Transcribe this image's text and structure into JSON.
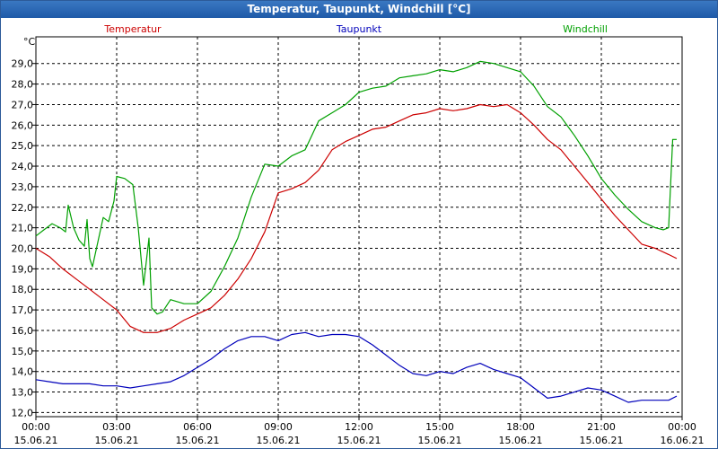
{
  "window": {
    "title": "Temperatur, Taupunkt, Windchill [°C]"
  },
  "chart_data": {
    "type": "line",
    "title": "Temperatur, Taupunkt, Windchill [°C]",
    "ylabel": "°C",
    "ylim": [
      11.8,
      30.3
    ],
    "xlim": [
      0,
      24
    ],
    "grid": true,
    "yticks": [
      "12,0",
      "13,0",
      "14,0",
      "15,0",
      "16,0",
      "17,0",
      "18,0",
      "19,0",
      "20,0",
      "21,0",
      "22,0",
      "23,0",
      "24,0",
      "25,0",
      "26,0",
      "27,0",
      "28,0",
      "29,0"
    ],
    "xticks": [
      {
        "time": "00:00",
        "date": "15.06.21"
      },
      {
        "time": "03:00",
        "date": "15.06.21"
      },
      {
        "time": "06:00",
        "date": "15.06.21"
      },
      {
        "time": "09:00",
        "date": "15.06.21"
      },
      {
        "time": "12:00",
        "date": "15.06.21"
      },
      {
        "time": "15:00",
        "date": "15.06.21"
      },
      {
        "time": "18:00",
        "date": "15.06.21"
      },
      {
        "time": "21:00",
        "date": "15.06.21"
      },
      {
        "time": "00:00",
        "date": "16.06.21"
      }
    ],
    "series": [
      {
        "name": "Temperatur",
        "color": "#cc0000",
        "x": [
          0,
          0.5,
          1,
          1.5,
          2,
          2.5,
          3,
          3.5,
          4,
          4.5,
          5,
          5.5,
          6,
          6.5,
          7,
          7.5,
          8,
          8.5,
          9,
          9.5,
          10,
          10.5,
          11,
          11.5,
          12,
          12.5,
          13,
          13.5,
          14,
          14.5,
          15,
          15.5,
          16,
          16.5,
          17,
          17.5,
          18,
          18.5,
          19,
          19.5,
          20,
          20.5,
          21,
          21.5,
          22,
          22.5,
          23,
          23.5,
          23.8
        ],
        "y": [
          20.0,
          19.6,
          19.0,
          18.5,
          18.0,
          17.5,
          17.0,
          16.2,
          15.9,
          15.9,
          16.1,
          16.5,
          16.8,
          17.1,
          17.7,
          18.5,
          19.5,
          20.8,
          22.7,
          22.9,
          23.2,
          23.8,
          24.8,
          25.2,
          25.5,
          25.8,
          25.9,
          26.2,
          26.5,
          26.6,
          26.8,
          26.7,
          26.8,
          27.0,
          26.9,
          27.0,
          26.6,
          26.0,
          25.3,
          24.8,
          24.0,
          23.2,
          22.4,
          21.6,
          20.9,
          20.2,
          20.0,
          19.7,
          19.5
        ]
      },
      {
        "name": "Taupunkt",
        "color": "#0000bb",
        "x": [
          0,
          0.5,
          1,
          1.5,
          2,
          2.5,
          3,
          3.5,
          4,
          4.5,
          5,
          5.5,
          6,
          6.5,
          7,
          7.5,
          8,
          8.5,
          9,
          9.5,
          10,
          10.5,
          11,
          11.5,
          12,
          12.5,
          13,
          13.5,
          14,
          14.5,
          15,
          15.5,
          16,
          16.5,
          17,
          17.5,
          18,
          18.5,
          19,
          19.5,
          20,
          20.5,
          21,
          21.5,
          22,
          22.5,
          23,
          23.5,
          23.8
        ],
        "y": [
          13.6,
          13.5,
          13.4,
          13.4,
          13.4,
          13.3,
          13.3,
          13.2,
          13.3,
          13.4,
          13.5,
          13.8,
          14.2,
          14.6,
          15.1,
          15.5,
          15.7,
          15.7,
          15.5,
          15.8,
          15.9,
          15.7,
          15.8,
          15.8,
          15.7,
          15.3,
          14.8,
          14.3,
          13.9,
          13.8,
          14.0,
          13.9,
          14.2,
          14.4,
          14.1,
          13.9,
          13.7,
          13.2,
          12.7,
          12.8,
          13.0,
          13.2,
          13.1,
          12.8,
          12.5,
          12.6,
          12.6,
          12.6,
          12.8
        ]
      },
      {
        "name": "Windchill",
        "color": "#00a000",
        "x": [
          0,
          0.3,
          0.6,
          0.9,
          1.1,
          1.2,
          1.4,
          1.6,
          1.8,
          1.9,
          2.0,
          2.1,
          2.3,
          2.5,
          2.7,
          2.9,
          3.0,
          3.3,
          3.6,
          3.8,
          4.0,
          4.2,
          4.3,
          4.5,
          4.7,
          5.0,
          5.5,
          6.0,
          6.5,
          7,
          7.5,
          8,
          8.5,
          9,
          9.5,
          10,
          10.5,
          11,
          11.5,
          12,
          12.5,
          13,
          13.5,
          14,
          14.5,
          15,
          15.5,
          16,
          16.5,
          17,
          17.5,
          18,
          18.5,
          19,
          19.5,
          20,
          20.5,
          21,
          21.5,
          22,
          22.5,
          23,
          23.3,
          23.5,
          23.65,
          23.8
        ],
        "y": [
          20.6,
          20.9,
          21.2,
          21.0,
          20.8,
          22.1,
          21.0,
          20.4,
          20.1,
          21.4,
          19.5,
          19.1,
          20.3,
          21.5,
          21.3,
          22.3,
          23.5,
          23.4,
          23.1,
          21.0,
          18.2,
          20.5,
          17.1,
          16.8,
          16.9,
          17.5,
          17.3,
          17.3,
          17.9,
          19.1,
          20.5,
          22.5,
          24.1,
          24.0,
          24.5,
          24.8,
          26.2,
          26.6,
          27.0,
          27.6,
          27.8,
          27.9,
          28.3,
          28.4,
          28.5,
          28.7,
          28.6,
          28.8,
          29.1,
          29.0,
          28.8,
          28.6,
          27.9,
          26.9,
          26.4,
          25.5,
          24.5,
          23.4,
          22.6,
          21.9,
          21.3,
          21.0,
          20.9,
          21.0,
          25.3,
          25.3
        ]
      }
    ]
  }
}
